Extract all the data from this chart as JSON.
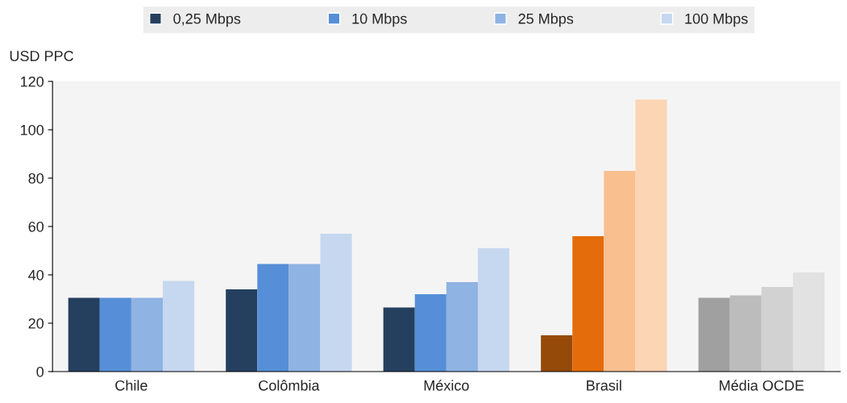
{
  "chart_data": {
    "type": "bar",
    "ylabel": "USD PPC",
    "categories": [
      "Chile",
      "Colômbia",
      "México",
      "Brasil",
      "Média OCDE"
    ],
    "series": [
      {
        "name": "0,25 Mbps",
        "color": "#253f5f",
        "colors": [
          "#253f5f",
          "#253f5f",
          "#253f5f",
          "#954a0a",
          "#a0a0a0"
        ],
        "values": [
          30.5,
          34,
          26.5,
          15,
          30.5
        ]
      },
      {
        "name": "10 Mbps",
        "color": "#568fd7",
        "colors": [
          "#568fd7",
          "#568fd7",
          "#568fd7",
          "#e46c0a",
          "#bcbcbc"
        ],
        "values": [
          30.5,
          44.5,
          32,
          56,
          31.5
        ]
      },
      {
        "name": "25 Mbps",
        "color": "#8fb3e2",
        "colors": [
          "#8fb3e2",
          "#8fb3e2",
          "#8fb3e2",
          "#f9bf8f",
          "#d2d2d2"
        ],
        "values": [
          30.5,
          44.5,
          37,
          83,
          35
        ]
      },
      {
        "name": "100 Mbps",
        "color": "#c6d8ef",
        "colors": [
          "#c6d8ef",
          "#c6d8ef",
          "#c6d8ef",
          "#fcd5b5",
          "#e2e2e2"
        ],
        "values": [
          37.5,
          57,
          51,
          112.5,
          41
        ]
      }
    ],
    "ylim": [
      0,
      120
    ],
    "yticks": [
      0,
      20,
      40,
      60,
      80,
      100,
      120
    ],
    "grid": false,
    "legend": "top"
  }
}
